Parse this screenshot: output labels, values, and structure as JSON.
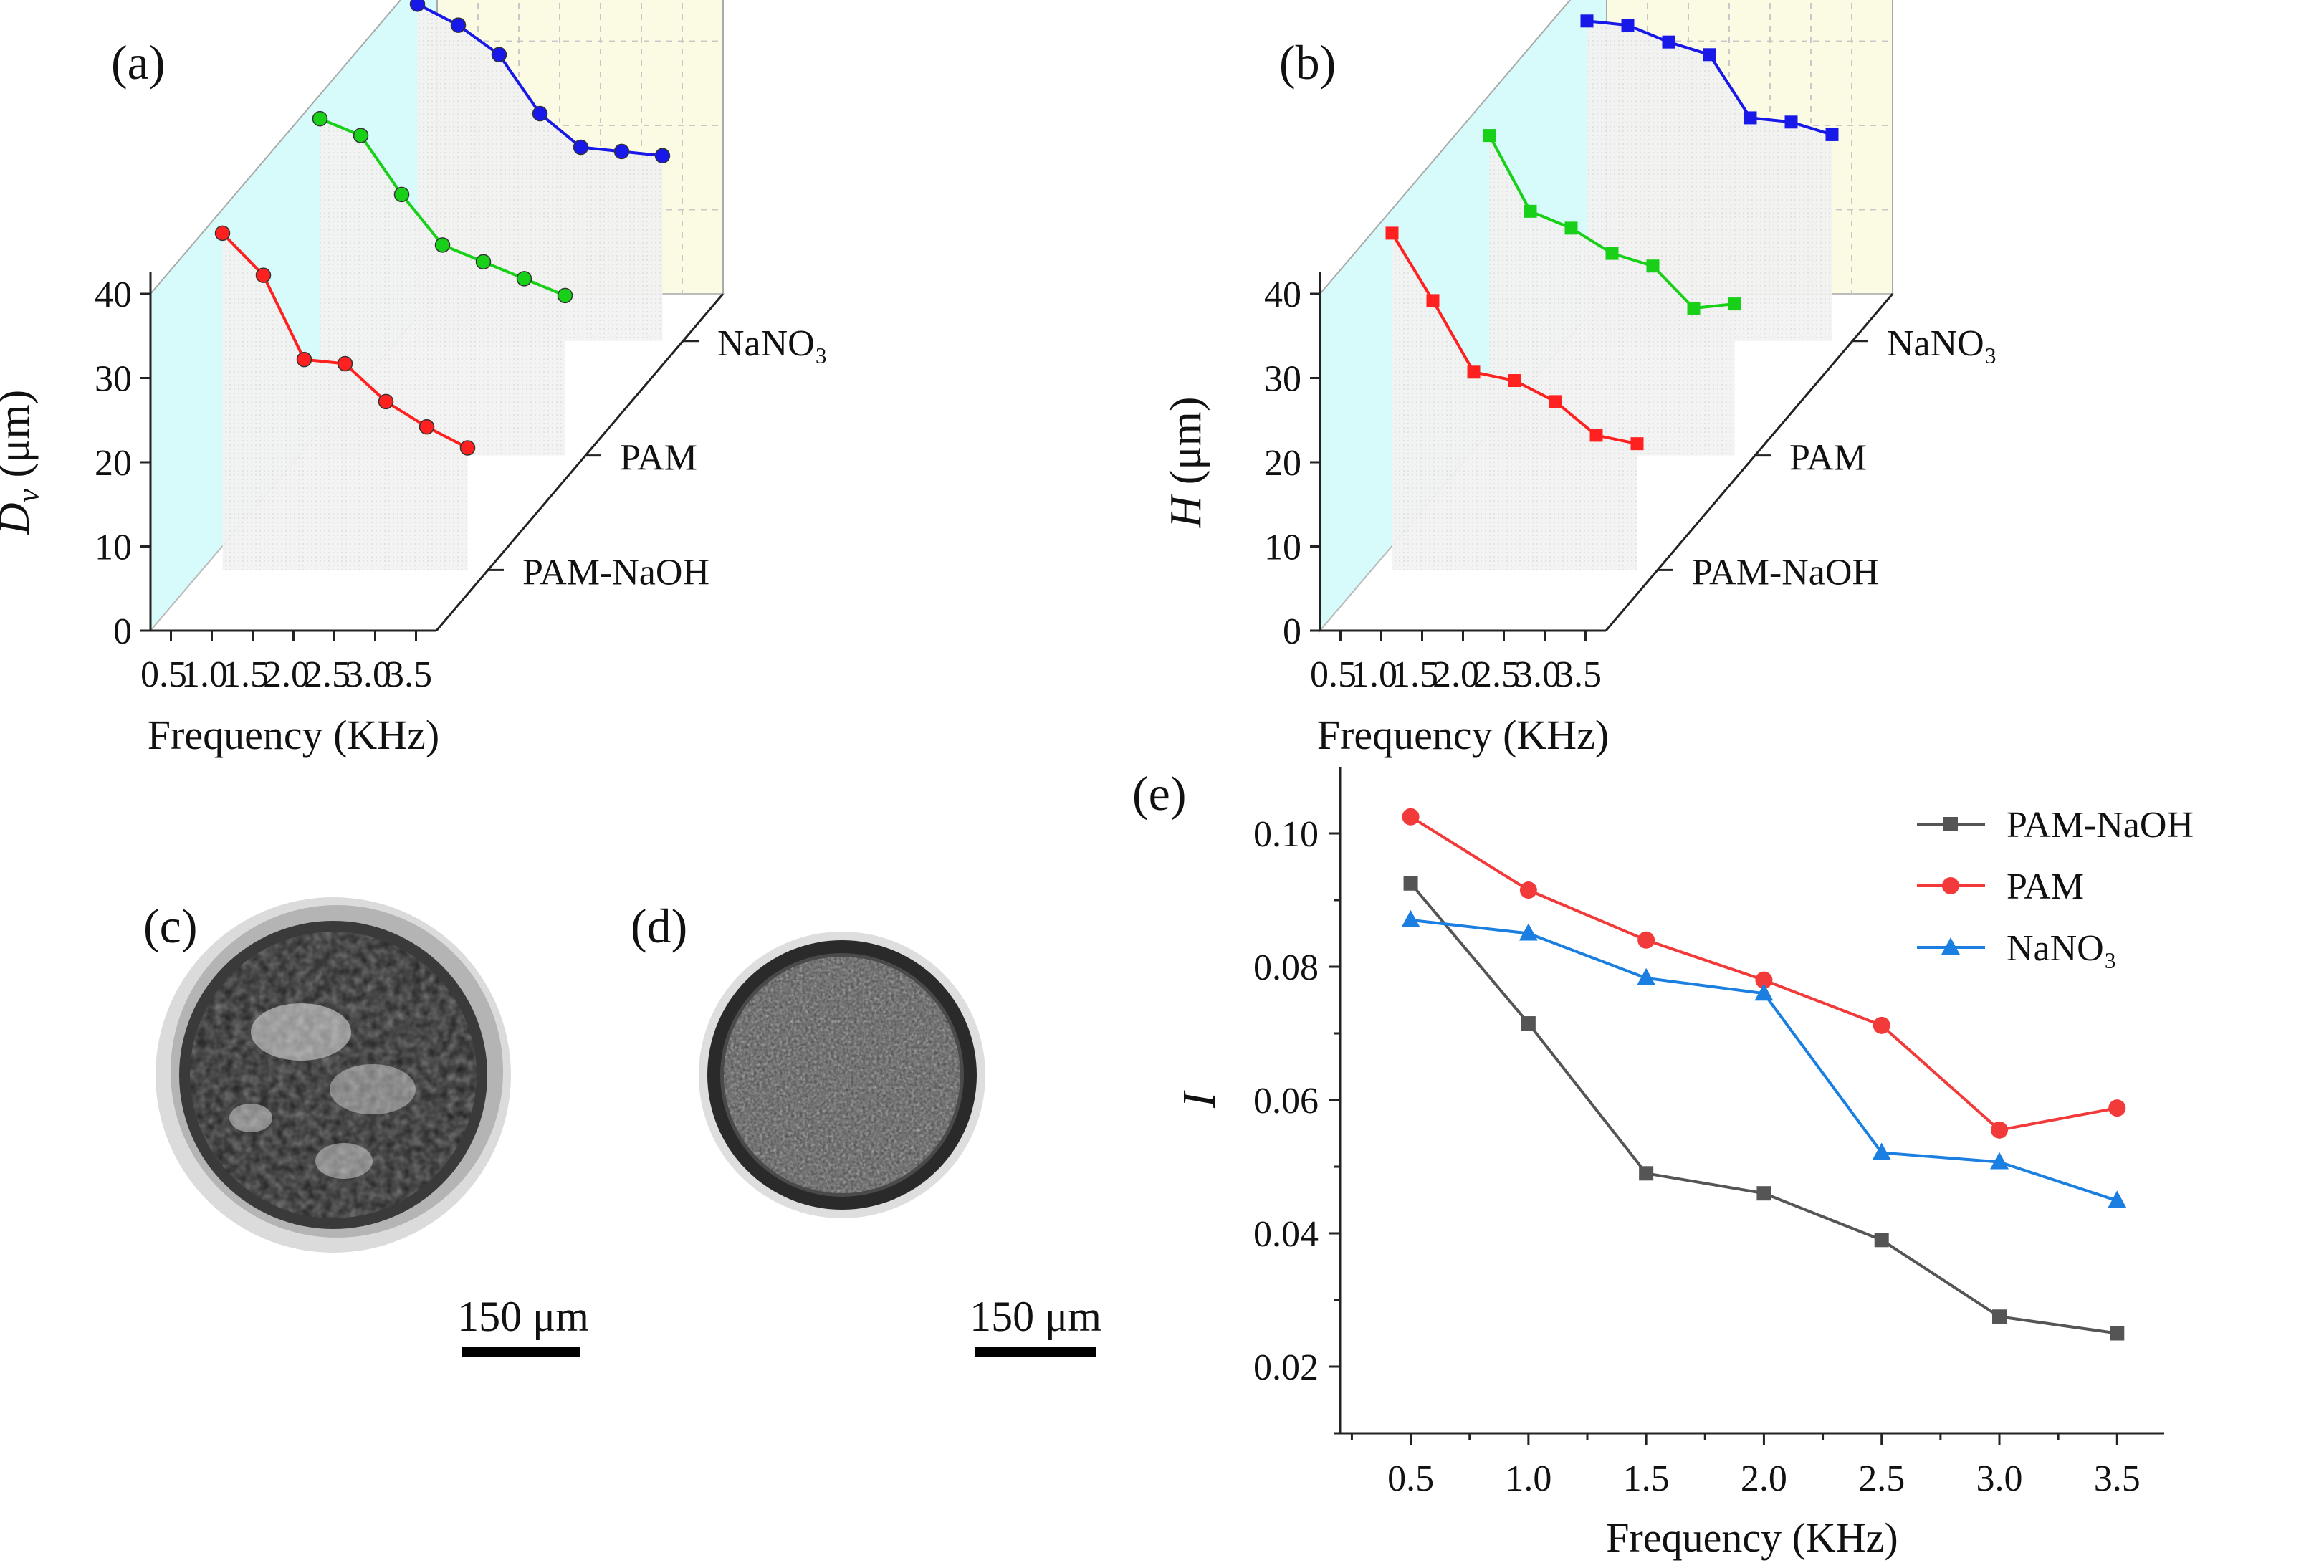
{
  "panels": {
    "a": {
      "label": "(a)"
    },
    "b": {
      "label": "(b)"
    },
    "c": {
      "label": "(c)",
      "scale_bar": "150 μm"
    },
    "d": {
      "label": "(d)",
      "scale_bar": "150 μm"
    },
    "e": {
      "label": "(e)"
    }
  },
  "colors": {
    "PAM-NaOH_3d": "#ff2020",
    "PAM_3d": "#18d018",
    "NaNO3_3d": "#1818e8",
    "PAM-NaOH_2d": "#555555",
    "PAM_2d": "#f23a3a",
    "NaNO3_2d": "#1a7fe0"
  },
  "chart_data": [
    {
      "id": "a",
      "type": "line3d",
      "ylabel_main": "D",
      "ylabel_sub": "v",
      "ylabel_unit": " (μm)",
      "xlabel": "Frequency (KHz)",
      "x": [
        0.5,
        1.0,
        1.5,
        2.0,
        2.5,
        3.0,
        3.5
      ],
      "x_ticks": [
        "0.5",
        "1.0",
        "1.5",
        "2.0",
        "2.5",
        "3.0",
        "3.5"
      ],
      "y_ticks": [
        "0",
        "10",
        "20",
        "30",
        "40"
      ],
      "ylim": [
        0,
        40
      ],
      "depth_labels": [
        "PAM-NaOH",
        "PAM",
        "NaNO₃"
      ],
      "series": [
        {
          "name": "PAM-NaOH",
          "values": [
            40,
            35,
            25,
            24.5,
            20,
            17,
            14.5
          ]
        },
        {
          "name": "PAM",
          "values": [
            40,
            38,
            31,
            25,
            23,
            21,
            19
          ]
        },
        {
          "name": "NaNO3",
          "values": [
            40,
            37.5,
            34,
            27,
            23,
            22.5,
            22
          ]
        }
      ]
    },
    {
      "id": "b",
      "type": "line3d",
      "ylabel_main": "H",
      "ylabel_sub": "",
      "ylabel_unit": " (μm)",
      "xlabel": "Frequency (KHz)",
      "x": [
        0.5,
        1.0,
        1.5,
        2.0,
        2.5,
        3.0,
        3.5
      ],
      "x_ticks": [
        "0.5",
        "1.0",
        "1.5",
        "2.0",
        "2.5",
        "3.0",
        "3.5"
      ],
      "y_ticks": [
        "0",
        "10",
        "20",
        "30",
        "40"
      ],
      "ylim": [
        0,
        40
      ],
      "depth_labels": [
        "PAM-NaOH",
        "PAM",
        "NaNO₃"
      ],
      "series": [
        {
          "name": "PAM-NaOH",
          "values": [
            40,
            32,
            23.5,
            22.5,
            20,
            16,
            15
          ]
        },
        {
          "name": "PAM",
          "values": [
            38,
            29,
            27,
            24,
            22.5,
            17.5,
            18
          ]
        },
        {
          "name": "NaNO3",
          "values": [
            38,
            37.5,
            35.5,
            34,
            26.5,
            26,
            24.5
          ]
        }
      ]
    },
    {
      "id": "e",
      "type": "line",
      "xlabel": "Frequency (KHz)",
      "ylabel": "I",
      "x": [
        0.5,
        1.0,
        1.5,
        2.0,
        2.5,
        3.0,
        3.5
      ],
      "x_ticks": [
        "0.5",
        "1.0",
        "1.5",
        "2.0",
        "2.5",
        "3.0",
        "3.5"
      ],
      "xlim": [
        0.2,
        3.7
      ],
      "y_ticks": [
        "0.02",
        "0.04",
        "0.06",
        "0.08",
        "0.10"
      ],
      "y_tick_values": [
        0.02,
        0.04,
        0.06,
        0.08,
        0.1
      ],
      "ylim": [
        0.01,
        0.11
      ],
      "legend_position": "top-right",
      "series": [
        {
          "name": "PAM-NaOH",
          "marker": "square",
          "values": [
            0.0925,
            0.0715,
            0.049,
            0.046,
            0.039,
            0.0275,
            0.025
          ]
        },
        {
          "name": "PAM",
          "marker": "circle",
          "values": [
            0.1025,
            0.0915,
            0.084,
            0.078,
            0.0712,
            0.0555,
            0.0588
          ]
        },
        {
          "name": "NaNO₃",
          "marker": "triangle",
          "values": [
            0.087,
            0.085,
            0.0783,
            0.076,
            0.0521,
            0.0507,
            0.0449
          ]
        }
      ]
    }
  ]
}
